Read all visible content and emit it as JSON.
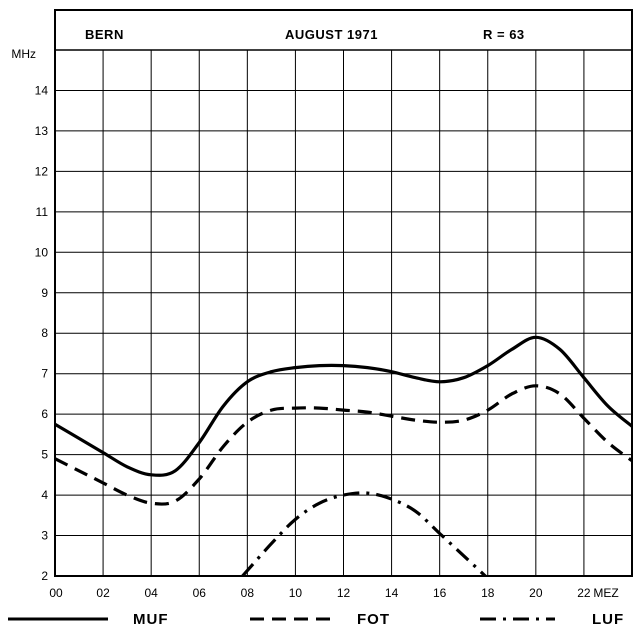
{
  "header": {
    "location": "BERN",
    "period": "AUGUST 1971",
    "sunspot": "R = 63"
  },
  "chart_data": {
    "type": "line",
    "title": "",
    "xlabel": "MEZ",
    "ylabel": "MHz",
    "xlim": [
      0,
      24
    ],
    "ylim": [
      2,
      15
    ],
    "grid": true,
    "legend_position": "bottom",
    "x_ticks": [
      "00",
      "02",
      "04",
      "06",
      "08",
      "10",
      "12",
      "14",
      "16",
      "18",
      "20",
      "22"
    ],
    "y_ticks": [
      "2",
      "3",
      "4",
      "5",
      "6",
      "7",
      "8",
      "9",
      "10",
      "11",
      "12",
      "13",
      "14"
    ],
    "series": [
      {
        "name": "MUF",
        "style": "solid",
        "x": [
          0,
          1,
          2,
          3,
          4,
          5,
          6,
          7,
          8,
          9,
          10,
          11,
          12,
          13,
          14,
          15,
          16,
          17,
          18,
          19,
          20,
          21,
          22,
          23,
          24
        ],
        "y": [
          5.75,
          5.4,
          5.05,
          4.7,
          4.5,
          4.6,
          5.3,
          6.2,
          6.8,
          7.05,
          7.15,
          7.2,
          7.2,
          7.15,
          7.05,
          6.9,
          6.8,
          6.9,
          7.2,
          7.6,
          7.9,
          7.6,
          6.9,
          6.2,
          5.7
        ]
      },
      {
        "name": "FOT",
        "style": "dashed",
        "x": [
          0,
          1,
          2,
          3,
          4,
          5,
          6,
          7,
          8,
          9,
          10,
          11,
          12,
          13,
          14,
          15,
          16,
          17,
          18,
          19,
          20,
          21,
          22,
          23,
          24
        ],
        "y": [
          4.9,
          4.6,
          4.3,
          4.0,
          3.8,
          3.85,
          4.4,
          5.2,
          5.8,
          6.1,
          6.15,
          6.15,
          6.1,
          6.05,
          5.95,
          5.85,
          5.8,
          5.85,
          6.1,
          6.5,
          6.7,
          6.5,
          5.9,
          5.3,
          4.85
        ]
      },
      {
        "name": "LUF",
        "style": "dash-dot",
        "x": [
          7.8,
          9,
          10,
          11,
          12,
          13,
          14,
          15,
          16,
          17,
          17.9
        ],
        "y": [
          2.0,
          2.8,
          3.4,
          3.8,
          4.0,
          4.05,
          3.9,
          3.6,
          3.05,
          2.5,
          2.0
        ]
      }
    ]
  },
  "legend": [
    {
      "label": "MUF",
      "style": "solid"
    },
    {
      "label": "FOT",
      "style": "dashed"
    },
    {
      "label": "LUF",
      "style": "dash-dot"
    }
  ],
  "colors": {
    "ink": "#000000",
    "paper": "#ffffff"
  }
}
